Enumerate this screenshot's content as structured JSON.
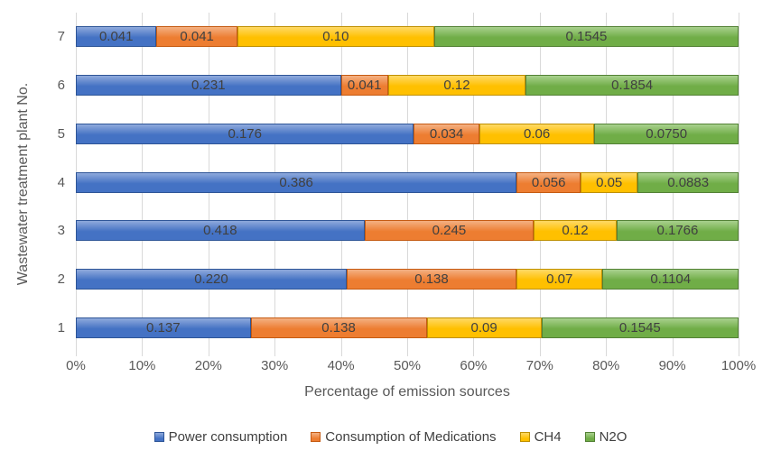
{
  "chart_data": {
    "type": "bar",
    "subtype": "horizontal-100pct-stacked",
    "title": "",
    "xlabel": "Percentage of emission sources",
    "ylabel": "Wastewater treatment plant No.",
    "categories": [
      "7",
      "6",
      "5",
      "4",
      "3",
      "2",
      "1"
    ],
    "x_ticks": [
      "0%",
      "10%",
      "20%",
      "30%",
      "40%",
      "50%",
      "60%",
      "70%",
      "80%",
      "90%",
      "100%"
    ],
    "xlim": [
      0,
      100
    ],
    "grid": "vertical-only",
    "gridline_color": "#d9d9d9",
    "legend_position": "bottom",
    "series": [
      {
        "name": "Power consumption",
        "fill": "#4472c4",
        "light": "#8faadc",
        "border": "#2e5597",
        "values": [
          "0.041",
          "0.231",
          "0.176",
          "0.386",
          "0.418",
          "0.220",
          "0.137"
        ]
      },
      {
        "name": "Consumption of Medications",
        "fill": "#ed7d31",
        "light": "#f4b183",
        "border": "#c55a11",
        "values": [
          "0.041",
          "0.041",
          "0.034",
          "0.056",
          "0.245",
          "0.138",
          "0.138"
        ]
      },
      {
        "name": "CH4",
        "fill": "#ffc000",
        "light": "#ffd966",
        "border": "#bf9000",
        "values": [
          "0.10",
          "0.12",
          "0.06",
          "0.05",
          "0.12",
          "0.07",
          "0.09"
        ]
      },
      {
        "name": "N2O",
        "fill": "#70ad47",
        "light": "#a9d18e",
        "border": "#538135",
        "values": [
          "0.1545",
          "0.1854",
          "0.0750",
          "0.0883",
          "0.1766",
          "0.1104",
          "0.1545"
        ]
      }
    ]
  }
}
